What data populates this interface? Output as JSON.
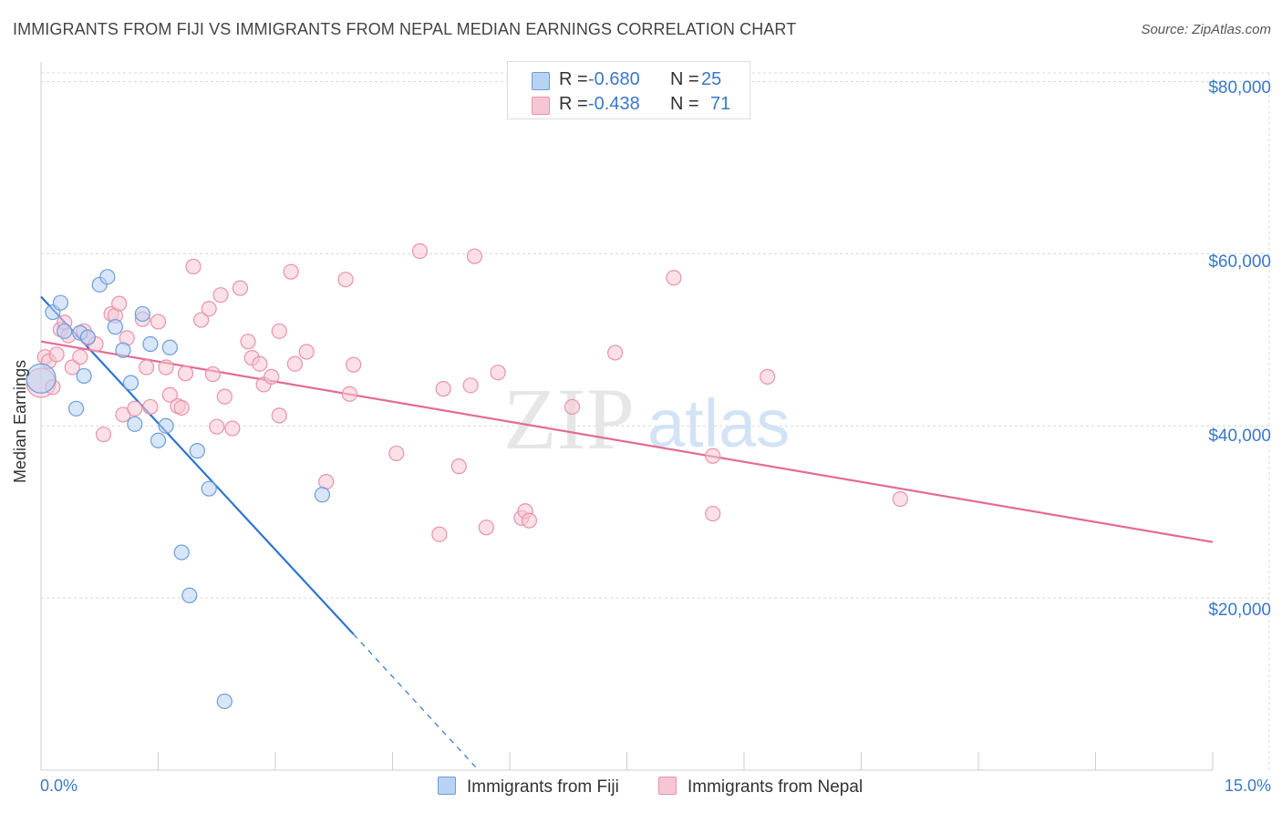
{
  "title": "IMMIGRANTS FROM FIJI VS IMMIGRANTS FROM NEPAL MEDIAN EARNINGS CORRELATION CHART",
  "source": "Source: ZipAtlas.com",
  "watermark": {
    "zip": "ZIP",
    "atlas": "atlas"
  },
  "legend": {
    "fiji": {
      "r_label": "R =",
      "r_value": "-0.680",
      "n_label": "N =",
      "n_value": "25"
    },
    "nepal": {
      "r_label": "R =",
      "r_value": "-0.438",
      "n_label": "N =",
      "n_value": "71"
    }
  },
  "colors": {
    "fiji_fill": "#b8d2f4",
    "fiji_stroke": "#6b9ddb",
    "fiji_line": "#2f74d0",
    "nepal_fill": "#f7c6d4",
    "nepal_stroke": "#e892ad",
    "nepal_line": "#e36b95",
    "grid": "#d8d8d8",
    "axis_text": "#3a78c8"
  },
  "chart_data": {
    "type": "scatter",
    "title": "IMMIGRANTS FROM FIJI VS IMMIGRANTS FROM NEPAL MEDIAN EARNINGS CORRELATION CHART",
    "xlabel": "",
    "ylabel": "Median Earnings",
    "xlim": [
      0,
      15
    ],
    "ylim": [
      0,
      81000
    ],
    "x_tick_labels": [
      "0.0%",
      "15.0%"
    ],
    "y_ticks": [
      20000,
      40000,
      60000,
      80000
    ],
    "y_tick_labels": [
      "$20,000",
      "$40,000",
      "$60,000",
      "$80,000"
    ],
    "grid": true,
    "legend_position": "top-center",
    "series": [
      {
        "name": "Immigrants from Fiji",
        "r": -0.68,
        "n": 25,
        "points": [
          [
            0.0,
            45500
          ],
          [
            0.15,
            53200
          ],
          [
            0.25,
            54300
          ],
          [
            0.3,
            51000
          ],
          [
            0.45,
            42000
          ],
          [
            0.5,
            50800
          ],
          [
            0.55,
            45800
          ],
          [
            0.6,
            50300
          ],
          [
            0.75,
            56400
          ],
          [
            0.85,
            57300
          ],
          [
            0.95,
            51500
          ],
          [
            1.05,
            48800
          ],
          [
            1.15,
            45000
          ],
          [
            1.2,
            40200
          ],
          [
            1.3,
            53000
          ],
          [
            1.4,
            49500
          ],
          [
            1.5,
            38300
          ],
          [
            1.6,
            40000
          ],
          [
            1.65,
            49100
          ],
          [
            1.8,
            25300
          ],
          [
            1.9,
            20300
          ],
          [
            2.0,
            37100
          ],
          [
            2.15,
            32700
          ],
          [
            2.35,
            8000
          ],
          [
            3.6,
            32000
          ]
        ],
        "trend": {
          "x": [
            0.0,
            4.0
          ],
          "y": [
            55000,
            15800
          ]
        },
        "trend_dashed": {
          "x": [
            4.0,
            5.6
          ],
          "y": [
            15800,
            0
          ]
        }
      },
      {
        "name": "Immigrants from Nepal",
        "r": -0.438,
        "n": 71,
        "points": [
          [
            0.0,
            45000
          ],
          [
            0.05,
            48000
          ],
          [
            0.1,
            47500
          ],
          [
            0.2,
            48300
          ],
          [
            0.25,
            51200
          ],
          [
            0.3,
            52000
          ],
          [
            0.35,
            50500
          ],
          [
            0.4,
            46800
          ],
          [
            0.5,
            48000
          ],
          [
            0.55,
            51000
          ],
          [
            0.6,
            50200
          ],
          [
            0.7,
            49500
          ],
          [
            0.8,
            39000
          ],
          [
            0.9,
            53000
          ],
          [
            0.95,
            52800
          ],
          [
            1.0,
            54200
          ],
          [
            1.05,
            41300
          ],
          [
            1.1,
            50200
          ],
          [
            1.2,
            42000
          ],
          [
            1.3,
            52400
          ],
          [
            1.35,
            46800
          ],
          [
            1.4,
            42200
          ],
          [
            1.5,
            52100
          ],
          [
            1.6,
            46800
          ],
          [
            1.65,
            43600
          ],
          [
            1.75,
            42300
          ],
          [
            1.8,
            42100
          ],
          [
            1.85,
            46100
          ],
          [
            1.95,
            58500
          ],
          [
            2.05,
            52300
          ],
          [
            2.15,
            53600
          ],
          [
            2.2,
            46000
          ],
          [
            2.25,
            39900
          ],
          [
            2.3,
            55200
          ],
          [
            2.35,
            43400
          ],
          [
            2.45,
            39700
          ],
          [
            2.55,
            56000
          ],
          [
            2.65,
            49800
          ],
          [
            2.7,
            47900
          ],
          [
            2.8,
            47200
          ],
          [
            2.85,
            44800
          ],
          [
            2.95,
            45700
          ],
          [
            3.05,
            41200
          ],
          [
            3.05,
            51000
          ],
          [
            3.2,
            57900
          ],
          [
            3.25,
            47200
          ],
          [
            3.4,
            48600
          ],
          [
            3.65,
            33500
          ],
          [
            3.9,
            57000
          ],
          [
            3.95,
            43700
          ],
          [
            4.0,
            47100
          ],
          [
            4.55,
            36800
          ],
          [
            4.85,
            60300
          ],
          [
            5.1,
            27400
          ],
          [
            5.15,
            44300
          ],
          [
            5.35,
            35300
          ],
          [
            5.5,
            44700
          ],
          [
            5.55,
            59700
          ],
          [
            5.7,
            28200
          ],
          [
            5.85,
            46200
          ],
          [
            6.15,
            29300
          ],
          [
            6.2,
            30100
          ],
          [
            6.25,
            29000
          ],
          [
            6.8,
            42200
          ],
          [
            7.35,
            48500
          ],
          [
            8.1,
            57200
          ],
          [
            8.6,
            36500
          ],
          [
            8.6,
            29800
          ],
          [
            9.3,
            45700
          ],
          [
            11.0,
            31500
          ],
          [
            0.15,
            44500
          ]
        ],
        "trend": {
          "x": [
            0.0,
            15.0
          ],
          "y": [
            49800,
            26500
          ]
        }
      }
    ]
  }
}
